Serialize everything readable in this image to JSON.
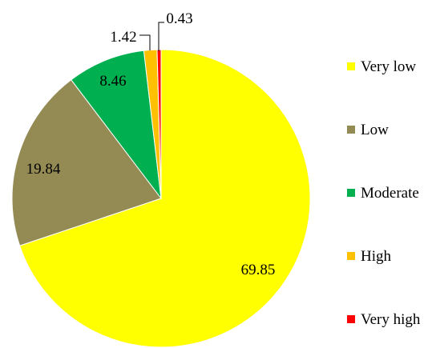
{
  "chart_data": {
    "type": "pie",
    "title": "",
    "categories": [
      "Very low",
      "Low",
      "Moderate",
      "High",
      "Very high"
    ],
    "values": [
      69.85,
      19.84,
      8.46,
      1.42,
      0.43
    ],
    "value_labels": [
      "69.85",
      "19.84",
      "8.46",
      "1.42",
      "0.43"
    ],
    "colors": [
      "#FFFF00",
      "#948A54",
      "#00B050",
      "#FFC000",
      "#FF0000"
    ],
    "start_angle": "12 o'clock",
    "direction": "clockwise",
    "legend_position": "right"
  }
}
